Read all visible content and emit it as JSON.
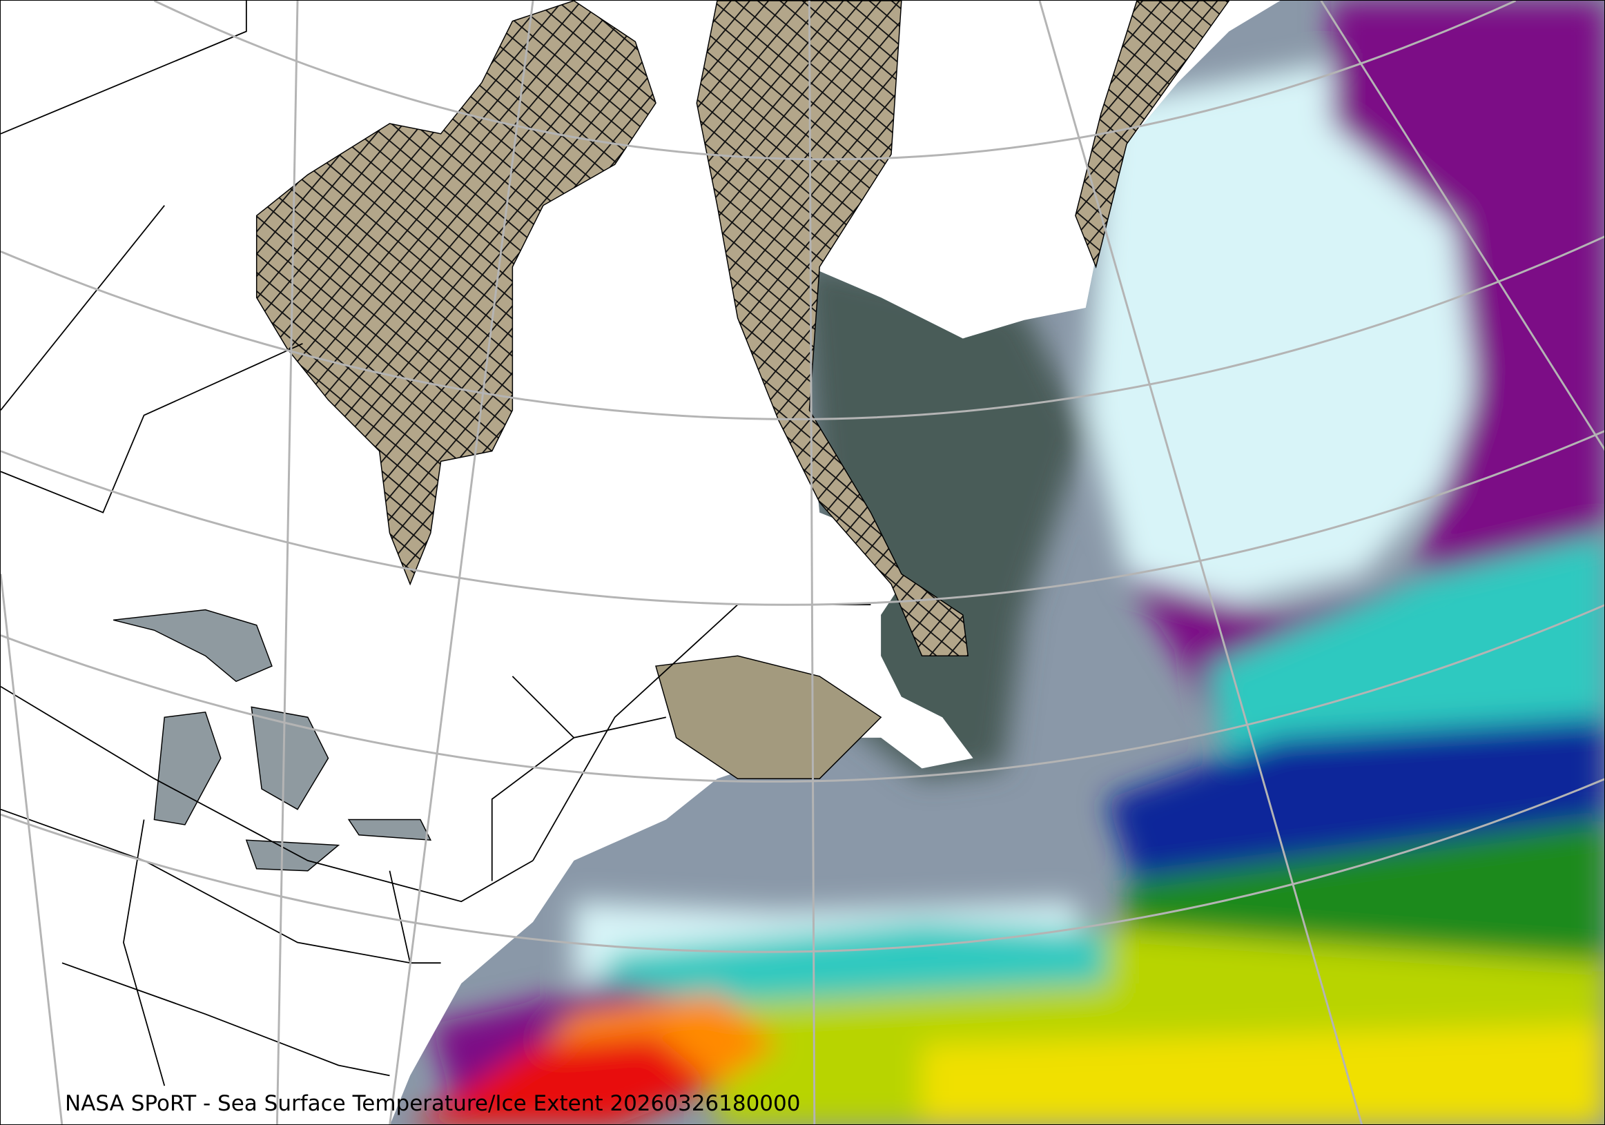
{
  "map": {
    "caption": "NASA SPoRT - Sea Surface Temperature/Ice Extent 20260326180000",
    "colors": {
      "land": "#ffffff",
      "ice": "#b3a68a",
      "graticule": "#b4b4b4",
      "sst_cold_purple": "#7b0a86",
      "sst_pale": "#d8f4f8",
      "sst_grey": "#8a98a8",
      "sst_dark": "#4a5c58",
      "sst_teal": "#2ec9c0",
      "sst_blue": "#10289a",
      "sst_green": "#1f8a1a",
      "sst_yellowgreen": "#b8d400",
      "sst_yellow": "#f0e000",
      "sst_orange": "#ff8a00",
      "sst_red": "#e81010"
    }
  }
}
